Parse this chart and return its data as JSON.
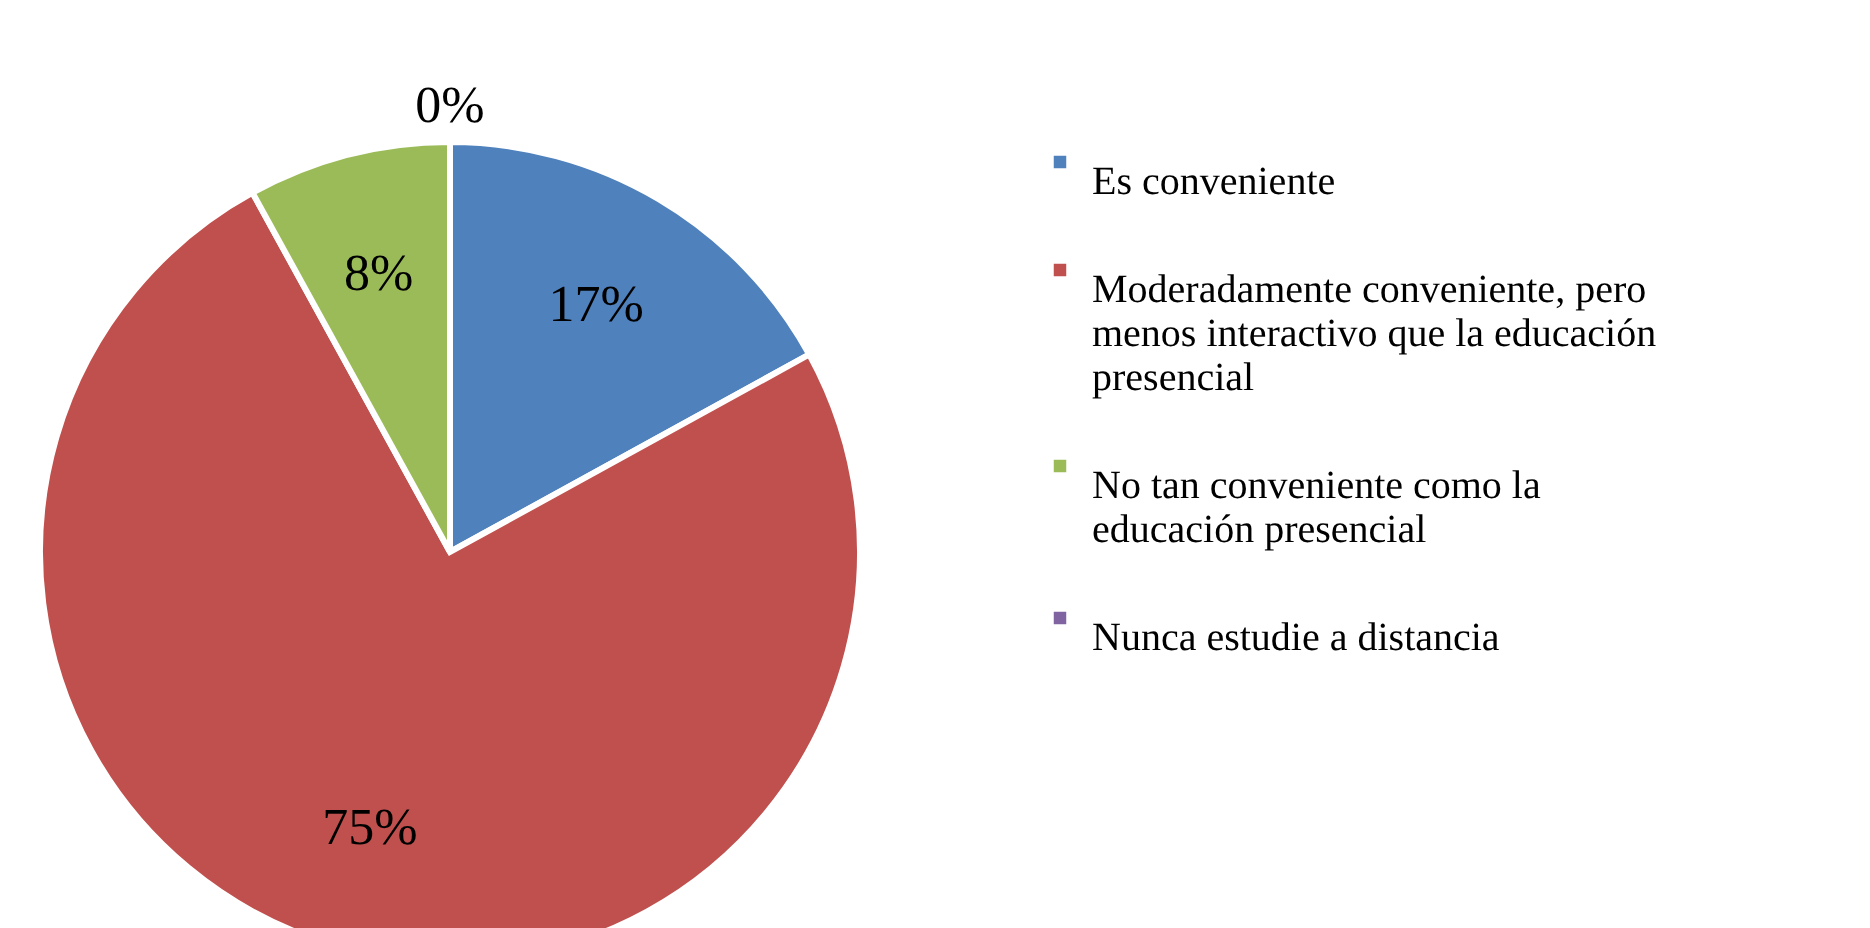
{
  "chart_data": {
    "type": "pie",
    "categories": [
      "Es conveniente",
      "Moderadamente conveniente, pero menos interactivo que la educación presencial",
      "No tan conveniente como la educación presencial",
      "Nunca estudie a distancia"
    ],
    "values": [
      17,
      75,
      8,
      0
    ],
    "colors": [
      "#4f81bd",
      "#c0504d",
      "#9bbb59",
      "#8064a2"
    ],
    "value_labels": [
      "17%",
      "75%",
      "8%",
      "0%"
    ],
    "legend": "right"
  }
}
